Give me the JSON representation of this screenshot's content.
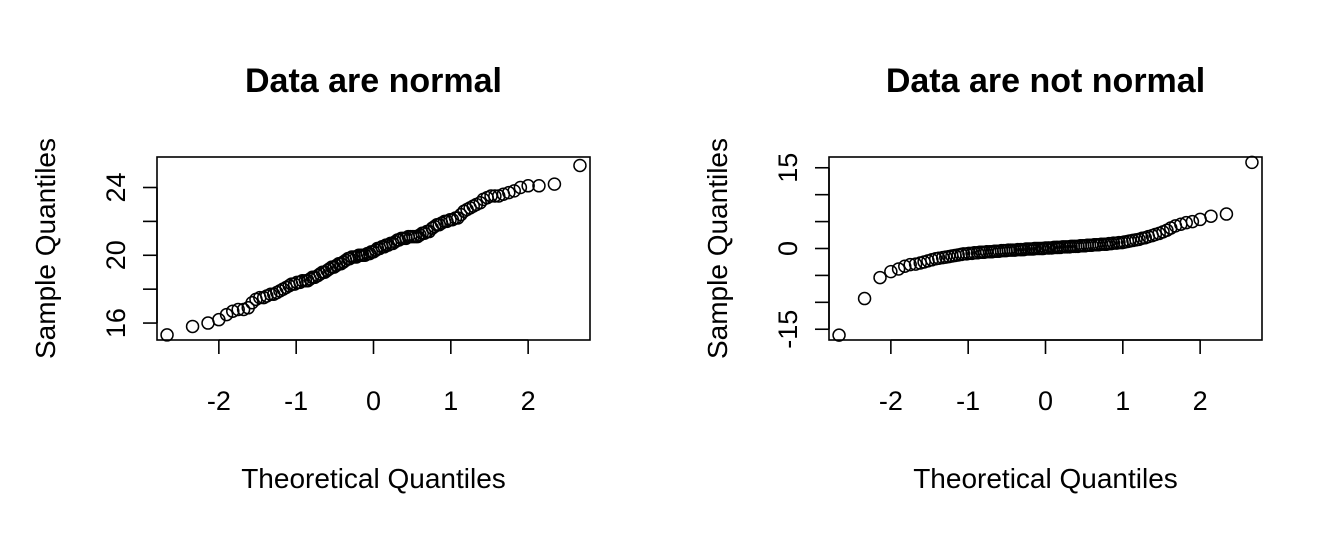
{
  "chart_data": [
    {
      "type": "scatter",
      "title": "Data are normal",
      "xlabel": "Theoretical Quantiles",
      "ylabel": "Sample Quantiles",
      "xlim": [
        -2.8,
        2.8
      ],
      "ylim": [
        15,
        25.8
      ],
      "x_ticks": [
        -2,
        -1,
        0,
        1,
        2
      ],
      "x_tick_labels": [
        "-2",
        "-1",
        "0",
        "1",
        "2"
      ],
      "y_ticks": [
        16,
        18,
        20,
        22,
        24
      ],
      "y_tick_labels": [
        "16",
        "20",
        "24"
      ],
      "y_tick_label_values": [
        16,
        20,
        24
      ],
      "grid": false,
      "series": [
        {
          "points": [
            [
              -2.67,
              15.3
            ],
            [
              -2.34,
              15.8
            ],
            [
              -2.14,
              16.0
            ],
            [
              -2.0,
              16.2
            ],
            [
              -1.9,
              16.5
            ],
            [
              -1.82,
              16.7
            ],
            [
              -1.75,
              16.8
            ],
            [
              -1.68,
              16.8
            ],
            [
              -1.62,
              16.9
            ],
            [
              -1.57,
              17.2
            ],
            [
              -1.52,
              17.4
            ],
            [
              -1.47,
              17.5
            ],
            [
              -1.42,
              17.5
            ],
            [
              -1.38,
              17.6
            ],
            [
              -1.33,
              17.7
            ],
            [
              -1.29,
              17.7
            ],
            [
              -1.25,
              17.8
            ],
            [
              -1.21,
              17.9
            ],
            [
              -1.17,
              18.0
            ],
            [
              -1.13,
              18.1
            ],
            [
              -1.09,
              18.2
            ],
            [
              -1.06,
              18.3
            ],
            [
              -1.02,
              18.3
            ],
            [
              -0.99,
              18.4
            ],
            [
              -0.95,
              18.4
            ],
            [
              -0.92,
              18.5
            ],
            [
              -0.88,
              18.5
            ],
            [
              -0.85,
              18.5
            ],
            [
              -0.82,
              18.6
            ],
            [
              -0.79,
              18.7
            ],
            [
              -0.76,
              18.7
            ],
            [
              -0.72,
              18.8
            ],
            [
              -0.69,
              18.9
            ],
            [
              -0.66,
              19.0
            ],
            [
              -0.63,
              19.0
            ],
            [
              -0.6,
              19.1
            ],
            [
              -0.57,
              19.2
            ],
            [
              -0.54,
              19.3
            ],
            [
              -0.51,
              19.3
            ],
            [
              -0.48,
              19.4
            ],
            [
              -0.45,
              19.5
            ],
            [
              -0.42,
              19.5
            ],
            [
              -0.39,
              19.6
            ],
            [
              -0.36,
              19.7
            ],
            [
              -0.33,
              19.8
            ],
            [
              -0.31,
              19.8
            ],
            [
              -0.28,
              19.9
            ],
            [
              -0.25,
              19.9
            ],
            [
              -0.22,
              19.9
            ],
            [
              -0.19,
              20.0
            ],
            [
              -0.16,
              20.0
            ],
            [
              -0.14,
              20.0
            ],
            [
              -0.11,
              20.0
            ],
            [
              -0.08,
              20.1
            ],
            [
              -0.05,
              20.1
            ],
            [
              -0.03,
              20.2
            ],
            [
              0.0,
              20.2
            ],
            [
              0.03,
              20.3
            ],
            [
              0.05,
              20.4
            ],
            [
              0.08,
              20.4
            ],
            [
              0.11,
              20.5
            ],
            [
              0.14,
              20.5
            ],
            [
              0.16,
              20.6
            ],
            [
              0.19,
              20.6
            ],
            [
              0.22,
              20.7
            ],
            [
              0.25,
              20.7
            ],
            [
              0.28,
              20.8
            ],
            [
              0.31,
              20.9
            ],
            [
              0.33,
              20.9
            ],
            [
              0.36,
              21.0
            ],
            [
              0.39,
              21.0
            ],
            [
              0.42,
              21.0
            ],
            [
              0.45,
              21.1
            ],
            [
              0.48,
              21.1
            ],
            [
              0.51,
              21.1
            ],
            [
              0.54,
              21.1
            ],
            [
              0.57,
              21.1
            ],
            [
              0.6,
              21.2
            ],
            [
              0.63,
              21.3
            ],
            [
              0.66,
              21.3
            ],
            [
              0.69,
              21.4
            ],
            [
              0.72,
              21.4
            ],
            [
              0.76,
              21.6
            ],
            [
              0.79,
              21.7
            ],
            [
              0.82,
              21.8
            ],
            [
              0.85,
              21.8
            ],
            [
              0.88,
              21.9
            ],
            [
              0.92,
              22.0
            ],
            [
              0.95,
              22.0
            ],
            [
              0.99,
              22.1
            ],
            [
              1.02,
              22.1
            ],
            [
              1.06,
              22.2
            ],
            [
              1.09,
              22.2
            ],
            [
              1.13,
              22.4
            ],
            [
              1.17,
              22.6
            ],
            [
              1.21,
              22.7
            ],
            [
              1.25,
              22.8
            ],
            [
              1.29,
              22.9
            ],
            [
              1.33,
              23.0
            ],
            [
              1.38,
              23.1
            ],
            [
              1.42,
              23.3
            ],
            [
              1.47,
              23.4
            ],
            [
              1.52,
              23.5
            ],
            [
              1.57,
              23.5
            ],
            [
              1.62,
              23.5
            ],
            [
              1.68,
              23.6
            ],
            [
              1.75,
              23.7
            ],
            [
              1.82,
              23.8
            ],
            [
              1.9,
              24.0
            ],
            [
              2.0,
              24.1
            ],
            [
              2.14,
              24.1
            ],
            [
              2.34,
              24.2
            ],
            [
              2.67,
              25.3
            ]
          ]
        }
      ]
    },
    {
      "type": "scatter",
      "title": "Data are not normal",
      "xlabel": "Theoretical Quantiles",
      "ylabel": "Sample Quantiles",
      "xlim": [
        -2.8,
        2.8
      ],
      "ylim": [
        -17,
        17
      ],
      "x_ticks": [
        -2,
        -1,
        0,
        1,
        2
      ],
      "x_tick_labels": [
        "-2",
        "-1",
        "0",
        "1",
        "2"
      ],
      "y_ticks": [
        -15,
        -10,
        -5,
        0,
        5,
        10,
        15
      ],
      "y_tick_labels": [
        "-15",
        "0",
        "15"
      ],
      "y_tick_label_values": [
        -15,
        0,
        15
      ],
      "grid": false,
      "series": [
        {
          "points": [
            [
              -2.67,
              -16.1
            ],
            [
              -2.34,
              -9.3
            ],
            [
              -2.14,
              -5.4
            ],
            [
              -2.0,
              -4.3
            ],
            [
              -1.9,
              -3.8
            ],
            [
              -1.82,
              -3.3
            ],
            [
              -1.75,
              -3.0
            ],
            [
              -1.68,
              -2.9
            ],
            [
              -1.62,
              -2.7
            ],
            [
              -1.57,
              -2.5
            ],
            [
              -1.52,
              -2.3
            ],
            [
              -1.47,
              -2.1
            ],
            [
              -1.42,
              -1.9
            ],
            [
              -1.38,
              -1.8
            ],
            [
              -1.33,
              -1.7
            ],
            [
              -1.29,
              -1.6
            ],
            [
              -1.25,
              -1.5
            ],
            [
              -1.21,
              -1.4
            ],
            [
              -1.17,
              -1.3
            ],
            [
              -1.13,
              -1.2
            ],
            [
              -1.09,
              -1.1
            ],
            [
              -1.06,
              -1.0
            ],
            [
              -1.02,
              -1.0
            ],
            [
              -0.99,
              -0.9
            ],
            [
              -0.95,
              -0.9
            ],
            [
              -0.92,
              -0.8
            ],
            [
              -0.88,
              -0.8
            ],
            [
              -0.85,
              -0.7
            ],
            [
              -0.82,
              -0.7
            ],
            [
              -0.79,
              -0.7
            ],
            [
              -0.76,
              -0.6
            ],
            [
              -0.72,
              -0.6
            ],
            [
              -0.69,
              -0.6
            ],
            [
              -0.66,
              -0.5
            ],
            [
              -0.63,
              -0.5
            ],
            [
              -0.6,
              -0.5
            ],
            [
              -0.57,
              -0.4
            ],
            [
              -0.54,
              -0.4
            ],
            [
              -0.51,
              -0.4
            ],
            [
              -0.48,
              -0.3
            ],
            [
              -0.45,
              -0.3
            ],
            [
              -0.42,
              -0.3
            ],
            [
              -0.39,
              -0.3
            ],
            [
              -0.36,
              -0.2
            ],
            [
              -0.33,
              -0.2
            ],
            [
              -0.31,
              -0.2
            ],
            [
              -0.28,
              -0.2
            ],
            [
              -0.25,
              -0.1
            ],
            [
              -0.22,
              -0.1
            ],
            [
              -0.19,
              -0.1
            ],
            [
              -0.16,
              -0.1
            ],
            [
              -0.14,
              0.0
            ],
            [
              -0.11,
              0.0
            ],
            [
              -0.08,
              0.0
            ],
            [
              -0.05,
              0.0
            ],
            [
              -0.03,
              0.0
            ],
            [
              0.0,
              0.1
            ],
            [
              0.03,
              0.1
            ],
            [
              0.05,
              0.1
            ],
            [
              0.08,
              0.1
            ],
            [
              0.11,
              0.2
            ],
            [
              0.14,
              0.2
            ],
            [
              0.16,
              0.2
            ],
            [
              0.19,
              0.2
            ],
            [
              0.22,
              0.3
            ],
            [
              0.25,
              0.3
            ],
            [
              0.28,
              0.3
            ],
            [
              0.31,
              0.3
            ],
            [
              0.33,
              0.4
            ],
            [
              0.36,
              0.4
            ],
            [
              0.39,
              0.4
            ],
            [
              0.42,
              0.4
            ],
            [
              0.45,
              0.5
            ],
            [
              0.48,
              0.5
            ],
            [
              0.51,
              0.5
            ],
            [
              0.54,
              0.6
            ],
            [
              0.57,
              0.6
            ],
            [
              0.6,
              0.6
            ],
            [
              0.63,
              0.7
            ],
            [
              0.66,
              0.7
            ],
            [
              0.69,
              0.7
            ],
            [
              0.72,
              0.8
            ],
            [
              0.76,
              0.8
            ],
            [
              0.79,
              0.8
            ],
            [
              0.82,
              0.9
            ],
            [
              0.85,
              0.9
            ],
            [
              0.88,
              1.0
            ],
            [
              0.92,
              1.0
            ],
            [
              0.95,
              1.1
            ],
            [
              0.99,
              1.1
            ],
            [
              1.02,
              1.2
            ],
            [
              1.06,
              1.3
            ],
            [
              1.09,
              1.4
            ],
            [
              1.13,
              1.5
            ],
            [
              1.17,
              1.6
            ],
            [
              1.21,
              1.7
            ],
            [
              1.25,
              1.9
            ],
            [
              1.29,
              2.0
            ],
            [
              1.33,
              2.2
            ],
            [
              1.38,
              2.4
            ],
            [
              1.42,
              2.6
            ],
            [
              1.47,
              2.8
            ],
            [
              1.52,
              3.1
            ],
            [
              1.57,
              3.4
            ],
            [
              1.62,
              3.8
            ],
            [
              1.68,
              4.2
            ],
            [
              1.75,
              4.5
            ],
            [
              1.82,
              4.8
            ],
            [
              1.9,
              5.0
            ],
            [
              2.0,
              5.4
            ],
            [
              2.14,
              6.0
            ],
            [
              2.34,
              6.4
            ],
            [
              2.67,
              16.0
            ]
          ]
        }
      ]
    }
  ]
}
